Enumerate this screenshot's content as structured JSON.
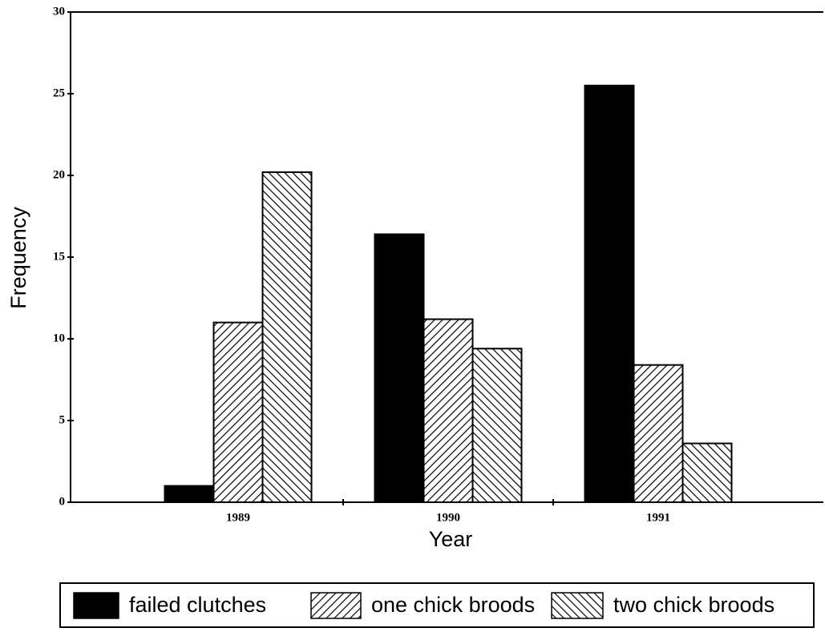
{
  "chart_data": {
    "type": "bar",
    "x_label": "Year",
    "y_label": "Frequency",
    "categories": [
      "1989",
      "1990",
      "1991"
    ],
    "series": [
      {
        "name": "failed clutches",
        "color": "#000000",
        "pattern": "solid",
        "values": [
          1,
          16.4,
          25.5
        ]
      },
      {
        "name": "one chick broods",
        "color": "#000000",
        "pattern": "forward",
        "values": [
          11,
          11.2,
          8.4
        ]
      },
      {
        "name": "two chick broods",
        "color": "#000000",
        "pattern": "back",
        "values": [
          20.2,
          9.4,
          3.6
        ]
      }
    ],
    "ylim": [
      0,
      30
    ],
    "yticks": [
      0,
      5,
      10,
      15,
      20,
      25,
      30
    ],
    "grid": false,
    "legend": "bottom"
  }
}
